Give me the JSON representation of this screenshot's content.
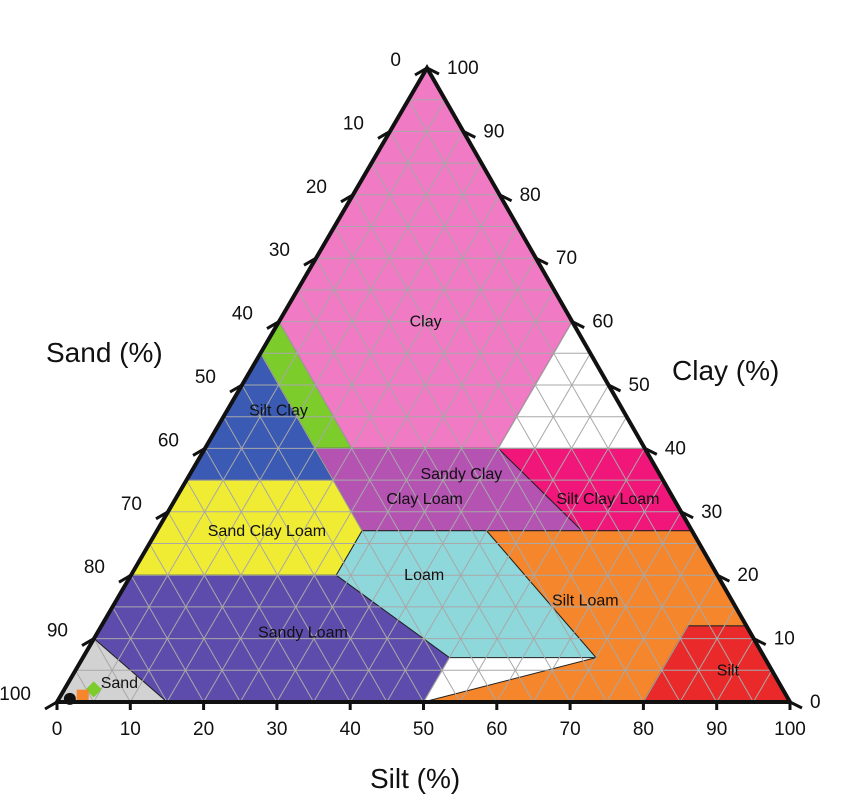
{
  "chart_data": {
    "type": "ternary",
    "axes": {
      "sand": {
        "title": "Sand (%)",
        "ticks": [
          "0",
          "10",
          "20",
          "30",
          "40",
          "50",
          "60",
          "70",
          "80",
          "90",
          "100"
        ]
      },
      "silt": {
        "title": "Silt (%)",
        "ticks": [
          "0",
          "10",
          "20",
          "30",
          "40",
          "50",
          "60",
          "70",
          "80",
          "90",
          "100"
        ]
      },
      "clay": {
        "title": "Clay (%)",
        "ticks": [
          "0",
          "10",
          "20",
          "30",
          "40",
          "50",
          "60",
          "70",
          "80",
          "90",
          "100"
        ]
      }
    },
    "grid": true,
    "grid_step": 5,
    "regions": [
      {
        "label": "Clay",
        "color": "#f07ac4",
        "label_color": "#111111",
        "vertices": [
          [
            0,
            100
          ],
          [
            45,
            55
          ],
          [
            45,
            40
          ],
          [
            20,
            40
          ],
          [
            0,
            60
          ]
        ],
        "label_at": [
          20,
          60
        ]
      },
      {
        "label": "Silt Clay",
        "color": "#7ccc2c",
        "label_color": "#111111",
        "vertices": [
          [
            40,
            60
          ],
          [
            60,
            40
          ],
          [
            40,
            40
          ]
        ],
        "label_at": [
          47,
          46
        ]
      },
      {
        "label": "Sandy Clay",
        "color": "#3a5ab4",
        "label_color": "#e0201c",
        "vertices": [
          [
            45,
            55
          ],
          [
            65,
            35
          ],
          [
            45,
            35
          ]
        ],
        "label_at": [
          27,
          36
        ]
      },
      {
        "label": "Clay Loam",
        "color": "#b453b2",
        "label_color": "#111111",
        "vertices": [
          [
            45,
            40
          ],
          [
            20,
            40
          ],
          [
            15,
            27
          ],
          [
            45,
            27
          ],
          [
            45,
            35
          ]
        ],
        "label_at": [
          34,
          32
        ]
      },
      {
        "label": "Silt Clay Loam",
        "color": "#f0167a",
        "label_color": "#111111",
        "vertices": [
          [
            20,
            40
          ],
          [
            0,
            40
          ],
          [
            0,
            27
          ],
          [
            15,
            27
          ]
        ],
        "label_at": [
          9,
          32
        ]
      },
      {
        "label": "Sand Clay Loam",
        "color": "#f0ec34",
        "label_color": "#111111",
        "vertices": [
          [
            65,
            35
          ],
          [
            80,
            20
          ],
          [
            52,
            20
          ],
          [
            45,
            27
          ],
          [
            45,
            35
          ]
        ],
        "label_at": [
          58,
          27
        ]
      },
      {
        "label": "Loam",
        "color": "#8ed8dc",
        "label_color": "#111111",
        "vertices": [
          [
            45,
            27
          ],
          [
            52,
            20
          ],
          [
            43,
            7
          ],
          [
            23,
            7
          ],
          [
            28,
            27
          ]
        ],
        "label_at": [
          40,
          20
        ]
      },
      {
        "label": "Silt Loam",
        "color": "#f5862c",
        "label_color": "#111111",
        "vertices": [
          [
            28,
            27
          ],
          [
            23,
            7
          ],
          [
            50,
            0
          ],
          [
            20,
            0
          ],
          [
            8,
            12
          ],
          [
            0,
            12
          ],
          [
            0,
            27
          ]
        ],
        "label_at": [
          20,
          16
        ]
      },
      {
        "label": "Silt",
        "color": "#ea2a2a",
        "label_color": "#111111",
        "vertices": [
          [
            8,
            12
          ],
          [
            20,
            0
          ],
          [
            0,
            0
          ],
          [
            0,
            12
          ]
        ],
        "label_at": [
          6,
          5
        ]
      },
      {
        "label": "Sandy Loam",
        "color": "#5e4cac",
        "label_color": "#111111",
        "vertices": [
          [
            80,
            20
          ],
          [
            52,
            20
          ],
          [
            43,
            7
          ],
          [
            50,
            0
          ],
          [
            85,
            0
          ],
          [
            90,
            10
          ]
        ],
        "label_at": [
          61,
          11
        ]
      },
      {
        "label": "Sand",
        "color": "#d2d2d2",
        "label_color": "#e0201c",
        "vertices": [
          [
            85,
            0
          ],
          [
            90,
            10
          ],
          [
            100,
            0
          ]
        ],
        "label_at": [
          90,
          3
        ]
      }
    ],
    "markers": [
      {
        "color": "#7ccc2c",
        "shape": "diamond",
        "at": [
          94,
          2
        ]
      },
      {
        "color": "#f5862c",
        "shape": "square",
        "at": [
          96,
          1
        ]
      },
      {
        "color": "#111111",
        "shape": "circle",
        "at": [
          98,
          0.5
        ]
      }
    ]
  }
}
